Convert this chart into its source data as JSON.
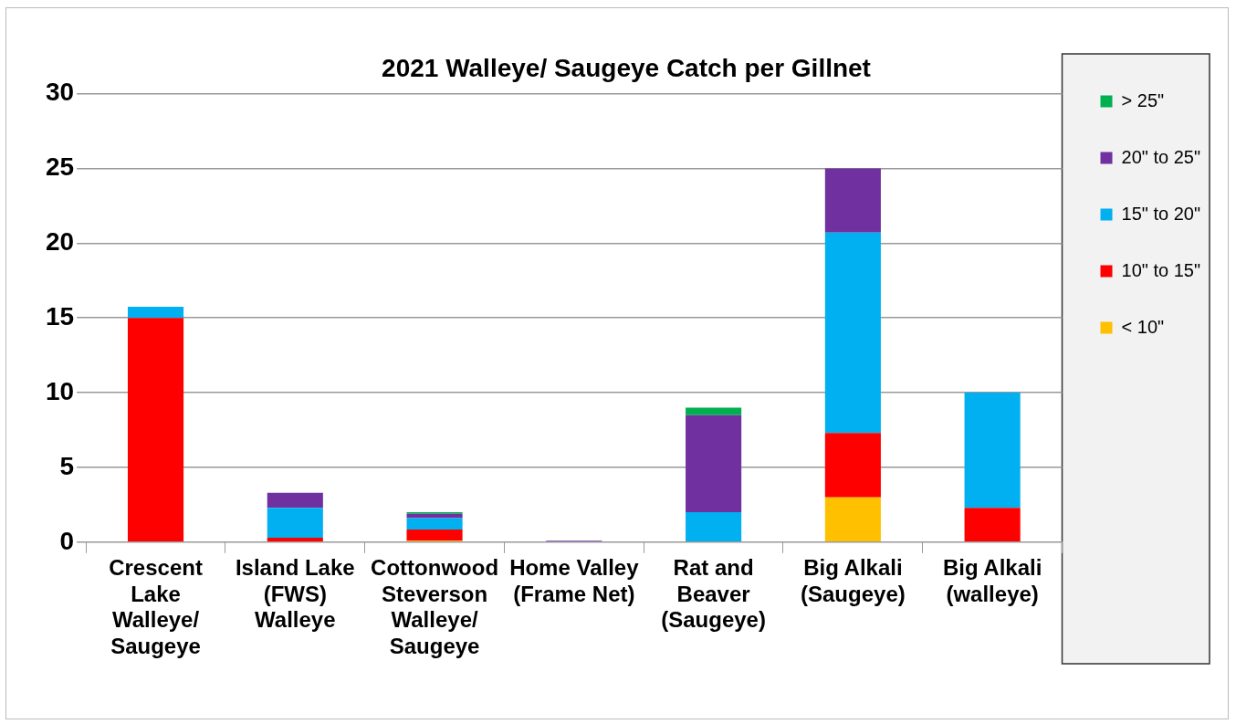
{
  "chart_data": {
    "type": "bar",
    "title": "2021 Walleye/ Saugeye Catch per Gillnet",
    "stacked": true,
    "grid": "y",
    "legend": "top right",
    "categories": [
      "Crescent Lake Walleye/ Saugeye",
      "Island Lake (FWS) Walleye",
      "Cottonwood Steverson Walleye/ Saugeye",
      "Home Valley (Frame Net)",
      "Rat and Beaver (Saugeye)",
      "Big Alkali (Saugeye)",
      "Big Alkali (walleye)"
    ],
    "ylim": [
      0,
      30
    ],
    "yticks": [
      0,
      5,
      10,
      15,
      20,
      25,
      30
    ],
    "series": [
      {
        "name": "< 10\"",
        "color": "#ffc000",
        "values": [
          0,
          0,
          0.1,
          0,
          0,
          3,
          0
        ]
      },
      {
        "name": "10\" to 15\"",
        "color": "#ff0000",
        "values": [
          15,
          0.3,
          0.75,
          0,
          0,
          4.3,
          2.3
        ]
      },
      {
        "name": "15\" to 20\"",
        "color": "#00b0f0",
        "values": [
          0.75,
          2,
          0.75,
          0,
          2,
          13.4,
          7.7
        ]
      },
      {
        "name": "20\" to 25\"",
        "color": "#7030a0",
        "values": [
          0,
          1,
          0.3,
          0.1,
          6.5,
          4.3,
          0
        ]
      },
      {
        "name": "> 25\"",
        "color": "#00b050",
        "values": [
          0,
          0,
          0.1,
          0,
          0.5,
          0,
          0
        ]
      }
    ]
  }
}
